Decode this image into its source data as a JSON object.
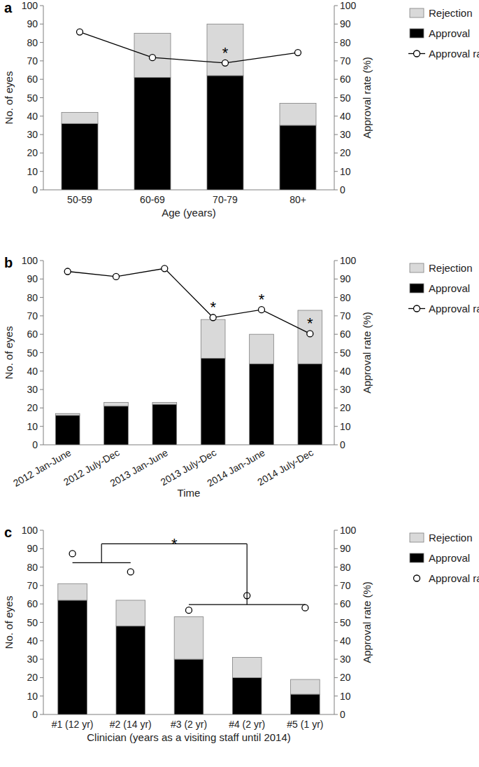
{
  "chart_data": [
    {
      "type": "bar",
      "title": "a",
      "stacked": true,
      "xlabel": "Age (years)",
      "ylabel": "No. of eyes",
      "y2label": "Approval rate (%)",
      "categories": [
        "50-59",
        "60-69",
        "70-79",
        "80+"
      ],
      "series": [
        {
          "name": "Approval",
          "type": "bar",
          "color": "#000000",
          "values": [
            36,
            61,
            62,
            35
          ]
        },
        {
          "name": "Rejection",
          "type": "bar",
          "color": "#d9d9d9",
          "values": [
            6,
            24,
            28,
            12
          ]
        },
        {
          "name": "Approval rate",
          "type": "line",
          "axis": "y2",
          "color": "#000000",
          "marker": "circle",
          "line_style": "solid",
          "values": [
            85.7,
            71.8,
            68.9,
            74.5
          ]
        }
      ],
      "ylim": [
        0,
        100
      ],
      "yticks": [
        0,
        10,
        20,
        30,
        40,
        50,
        60,
        70,
        80,
        90,
        100
      ],
      "y2lim": [
        0,
        100
      ],
      "y2ticks": [
        0,
        10,
        20,
        30,
        40,
        50,
        60,
        70,
        80,
        90,
        100
      ],
      "legend": "right",
      "annotations": [
        {
          "text": "*",
          "index": 2
        }
      ]
    },
    {
      "type": "bar",
      "title": "b",
      "stacked": true,
      "xlabel": "Time",
      "ylabel": "No. of eyes",
      "y2label": "Approval rate (%)",
      "categories": [
        "2012 Jan-June",
        "2012 July-Dec",
        "2013 Jan-June",
        "2013 July-Dec",
        "2014 Jan-June",
        "2014 July-Dec"
      ],
      "series": [
        {
          "name": "Approval",
          "type": "bar",
          "color": "#000000",
          "values": [
            16,
            21,
            22,
            47,
            44,
            44
          ]
        },
        {
          "name": "Rejection",
          "type": "bar",
          "color": "#d9d9d9",
          "values": [
            1,
            2,
            1,
            21,
            16,
            29
          ]
        },
        {
          "name": "Approval rate",
          "type": "line",
          "axis": "y2",
          "color": "#000000",
          "marker": "circle",
          "line_style": "solid",
          "values": [
            94.1,
            91.3,
            95.7,
            69.1,
            73.3,
            60.3
          ]
        }
      ],
      "ylim": [
        0,
        100
      ],
      "yticks": [
        0,
        10,
        20,
        30,
        40,
        50,
        60,
        70,
        80,
        90,
        100
      ],
      "y2lim": [
        0,
        100
      ],
      "y2ticks": [
        0,
        10,
        20,
        30,
        40,
        50,
        60,
        70,
        80,
        90,
        100
      ],
      "legend": "right",
      "annotations": [
        {
          "text": "*",
          "index": 3
        },
        {
          "text": "*",
          "index": 4
        },
        {
          "text": "*",
          "index": 5
        }
      ]
    },
    {
      "type": "bar",
      "title": "c",
      "stacked": true,
      "xlabel": "Clinician (years as a visiting staff until 2014)",
      "ylabel": "No. of eyes",
      "y2label": "Approval rate (%)",
      "categories": [
        "#1 (12 yr)",
        "#2 (14 yr)",
        "#3 (2 yr)",
        "#4 (2 yr)",
        "#5 (1 yr)"
      ],
      "series": [
        {
          "name": "Approval",
          "type": "bar",
          "color": "#000000",
          "values": [
            62,
            48,
            30,
            20,
            11
          ]
        },
        {
          "name": "Rejection",
          "type": "bar",
          "color": "#d9d9d9",
          "values": [
            9,
            14,
            23,
            11,
            8
          ]
        },
        {
          "name": "Approval rate",
          "type": "scatter",
          "axis": "y2",
          "color": "#000000",
          "marker": "circle",
          "values": [
            87.3,
            77.4,
            56.6,
            64.5,
            57.9
          ]
        }
      ],
      "ylim": [
        0,
        100
      ],
      "yticks": [
        0,
        10,
        20,
        30,
        40,
        50,
        60,
        70,
        80,
        90,
        100
      ],
      "y2lim": [
        0,
        100
      ],
      "y2ticks": [
        0,
        10,
        20,
        30,
        40,
        50,
        60,
        70,
        80,
        90,
        100
      ],
      "legend": "right",
      "annotations": [
        {
          "text": "*",
          "groups": [
            [
              0,
              1
            ],
            [
              2,
              3,
              4
            ]
          ]
        }
      ]
    }
  ]
}
